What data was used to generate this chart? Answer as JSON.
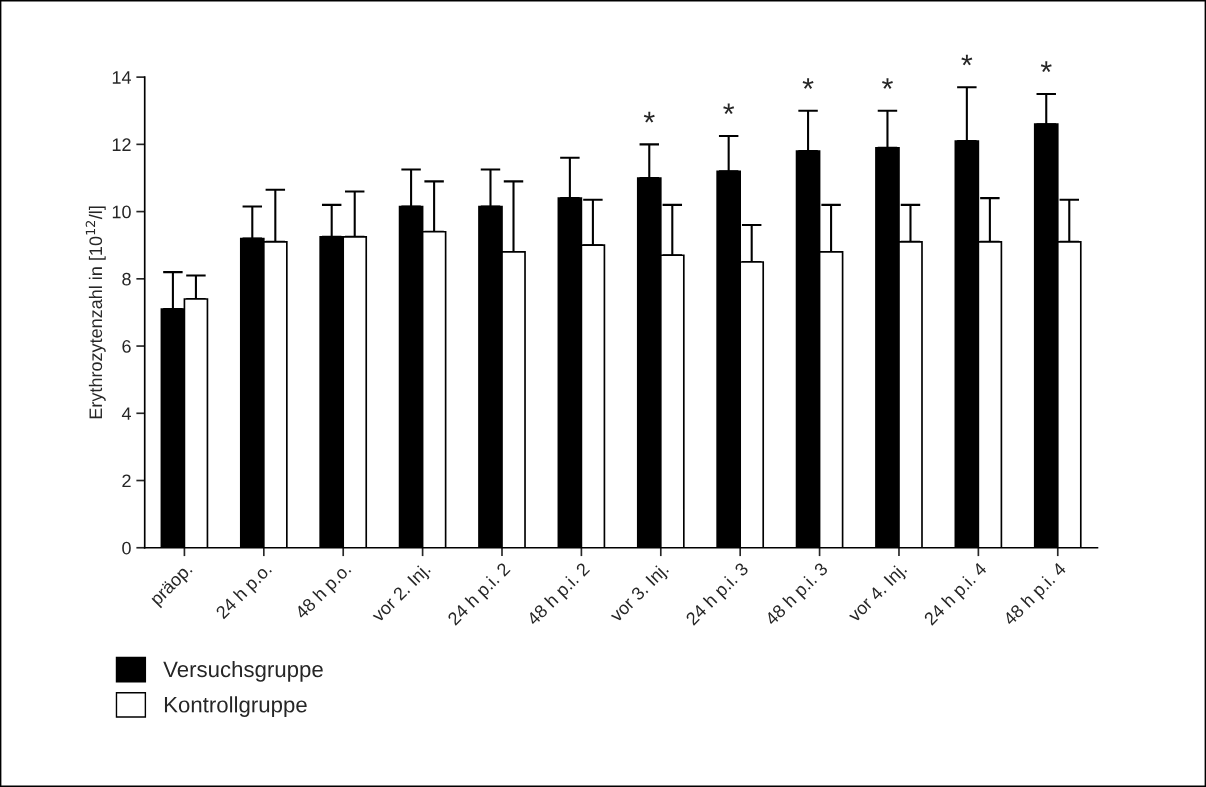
{
  "chart_data": {
    "type": "bar",
    "ylabel": "Erythrozytenzahl in [10$^{12}$/l]",
    "categories": [
      "präop.",
      "24 h p.o.",
      "48 h p.o.",
      "vor 2. Inj.",
      "24 h p.i. 2",
      "48 h p.i. 2",
      "vor 3. Inj.",
      "24 h p.i. 3",
      "48 h p.i. 3",
      "vor 4. Inj.",
      "24 h p.i. 4",
      "48 h p.i. 4"
    ],
    "series": [
      {
        "name": "Versuchsgruppe",
        "color": "#000000",
        "values": [
          7.1,
          9.2,
          9.25,
          10.15,
          10.15,
          10.4,
          11.0,
          11.2,
          11.8,
          11.9,
          12.1,
          12.6
        ],
        "errors": [
          [
            7.1,
            8.2
          ],
          [
            9.2,
            10.15
          ],
          [
            9.25,
            10.2
          ],
          [
            10.15,
            11.25
          ],
          [
            10.15,
            11.25
          ],
          [
            10.4,
            11.6
          ],
          [
            11.0,
            12.0
          ],
          [
            11.2,
            12.25
          ],
          [
            11.8,
            13.0
          ],
          [
            11.9,
            13.0
          ],
          [
            12.1,
            13.7
          ],
          [
            12.6,
            13.5
          ]
        ]
      },
      {
        "name": "Kontrollgruppe",
        "color": "#ffffff",
        "values": [
          7.4,
          9.1,
          9.25,
          9.4,
          8.8,
          9.0,
          8.7,
          8.5,
          8.8,
          9.1,
          9.1,
          9.1
        ],
        "errors": [
          [
            7.4,
            8.1
          ],
          [
            9.1,
            10.65
          ],
          [
            9.25,
            10.6
          ],
          [
            9.4,
            10.9
          ],
          [
            8.8,
            10.9
          ],
          [
            9.0,
            10.35
          ],
          [
            8.7,
            10.2
          ],
          [
            8.5,
            9.6
          ],
          [
            8.8,
            10.2
          ],
          [
            9.1,
            10.2
          ],
          [
            9.1,
            10.4
          ],
          [
            9.1,
            10.35
          ]
        ]
      }
    ],
    "annotations": [
      {
        "text": "*",
        "x": "vor 3. Inj.",
        "y": 12.0
      },
      {
        "text": "*",
        "x": "24 h p.i. 3",
        "y": 12.25
      },
      {
        "text": "*",
        "x": "48 h p.i. 3",
        "y": 13.0
      },
      {
        "text": "*",
        "x": "vor 4. Inj.",
        "y": 13.0
      },
      {
        "text": "*",
        "x": "24 h p.i. 4",
        "y": 13.7
      },
      {
        "text": "*",
        "x": "48 h p.i. 4",
        "y": 13.5
      }
    ],
    "ylim": [
      0,
      14
    ],
    "yticks": [
      0,
      2,
      4,
      6,
      8,
      10,
      12,
      14
    ],
    "grid": false,
    "legend": "bottom left"
  }
}
